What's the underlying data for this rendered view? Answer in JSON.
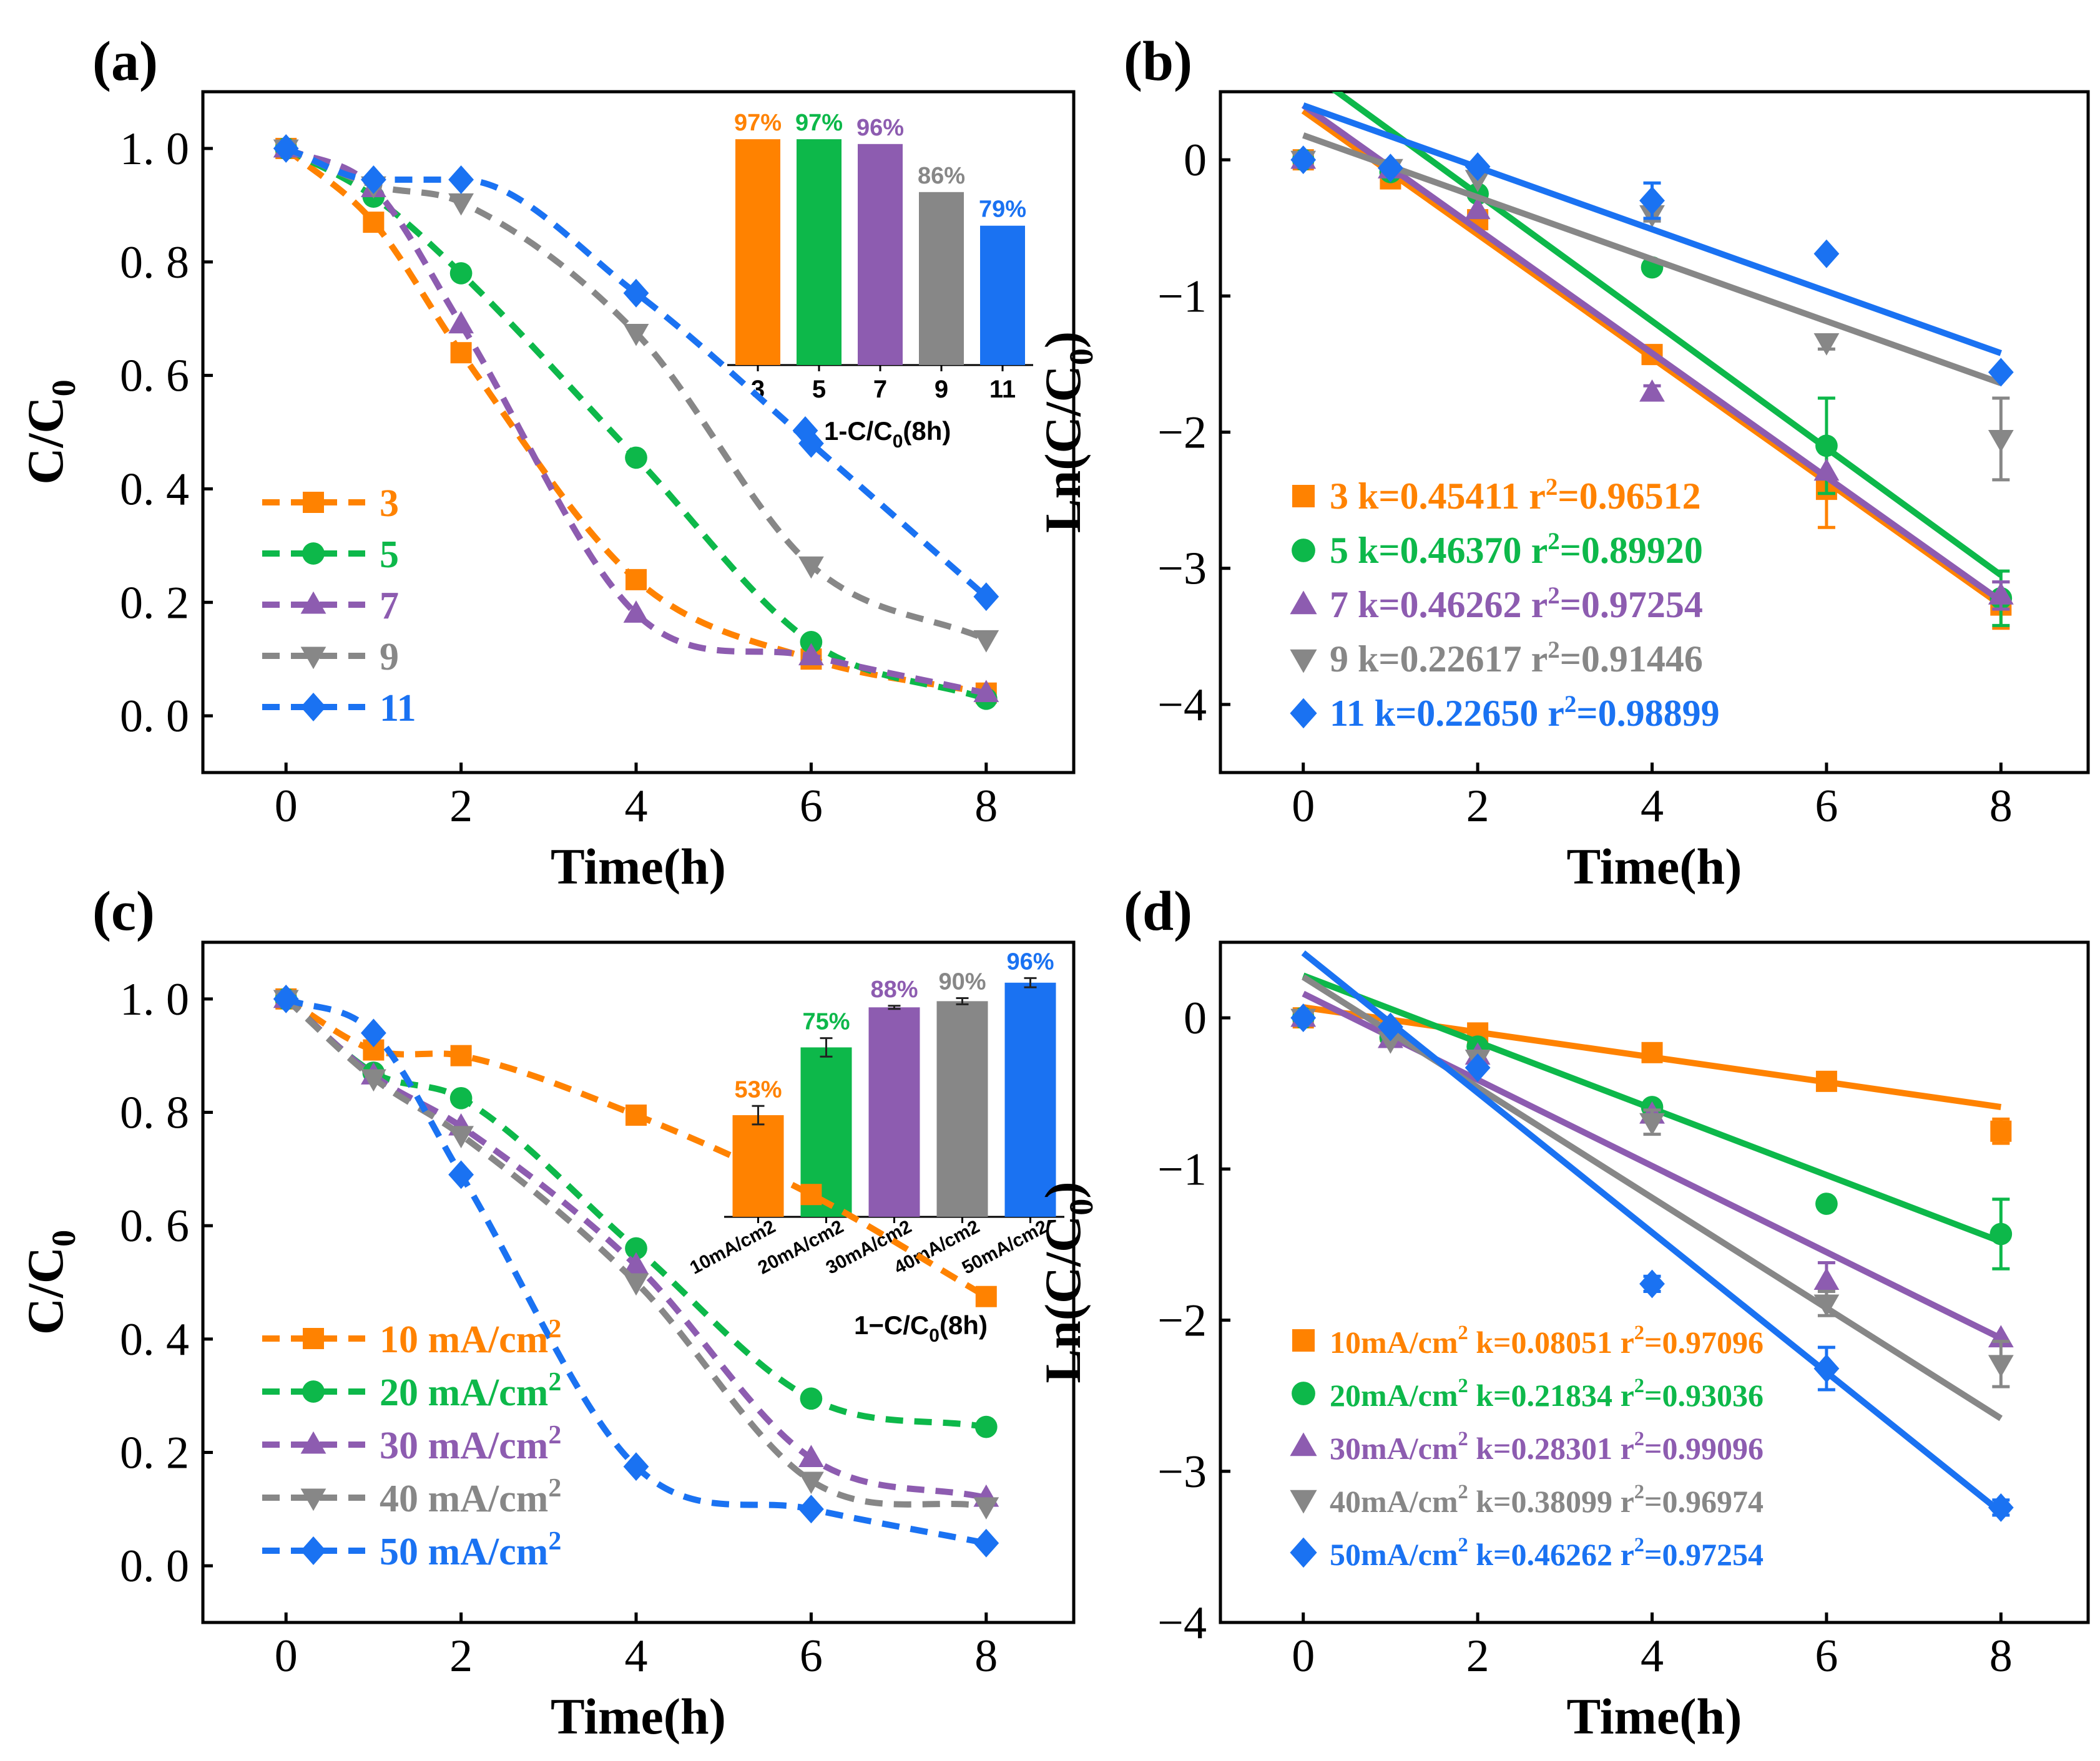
{
  "colors": {
    "orange": "#FF8200",
    "green": "#0DB84A",
    "purple": "#8D5CB0",
    "gray": "#878787",
    "blue": "#1A72F2",
    "axis": "#000000"
  },
  "chart_data": [
    {
      "id": "a",
      "panel_label": "(a)",
      "type": "line",
      "line_style": "dashed-smooth",
      "xlabel": "Time(h)",
      "ylabel": "C/C",
      "ylabel_sub": "0",
      "xlim": [
        -0.95,
        9
      ],
      "ylim": [
        -0.1,
        1.1
      ],
      "xticks": [
        0,
        2,
        4,
        6,
        8
      ],
      "xtick_labels": [
        "0",
        "2",
        "4",
        "6",
        "8"
      ],
      "yticks": [
        0,
        0.2,
        0.4,
        0.6,
        0.8,
        1.0
      ],
      "ytick_labels": [
        "0. 0",
        "0. 2",
        "0. 4",
        "0. 6",
        "0. 8",
        "1. 0"
      ],
      "legend": "middle-left",
      "series": [
        {
          "name": "3",
          "color": "orange",
          "marker": "square",
          "x": [
            0,
            1,
            2,
            4,
            6,
            8
          ],
          "y": [
            1.0,
            0.87,
            0.64,
            0.24,
            0.1,
            0.04
          ]
        },
        {
          "name": "5",
          "color": "green",
          "marker": "circle",
          "x": [
            0,
            1,
            2,
            4,
            6,
            8
          ],
          "y": [
            1.0,
            0.915,
            0.78,
            0.455,
            0.13,
            0.03
          ]
        },
        {
          "name": "7",
          "color": "purple",
          "marker": "triangle-up",
          "x": [
            0,
            1,
            2,
            4,
            6,
            8
          ],
          "y": [
            1.0,
            0.93,
            0.69,
            0.18,
            0.105,
            0.04
          ]
        },
        {
          "name": "9",
          "color": "gray",
          "marker": "triangle-down",
          "x": [
            0,
            1,
            2,
            4,
            6,
            8
          ],
          "y": [
            1.0,
            0.935,
            0.905,
            0.675,
            0.265,
            0.135
          ]
        },
        {
          "name": "11",
          "color": "blue",
          "marker": "diamond",
          "x": [
            0,
            1,
            2,
            4,
            6,
            8
          ],
          "y": [
            1.0,
            0.945,
            0.945,
            0.745,
            0.48,
            0.21
          ]
        }
      ],
      "inset": {
        "type": "bar",
        "categories": [
          "3",
          "5",
          "7",
          "9",
          "11"
        ],
        "values": [
          97,
          97,
          96,
          86,
          79
        ],
        "labels": [
          "97%",
          "97%",
          "96%",
          "86%",
          "79%"
        ],
        "colors": [
          "orange",
          "green",
          "purple",
          "gray",
          "blue"
        ],
        "label_colors": [
          "orange",
          "green",
          "purple",
          "gray",
          "blue"
        ],
        "errors": [
          0,
          0,
          0,
          0,
          0
        ],
        "ylim": [
          50,
          100
        ],
        "rotate_categories": false,
        "legend_text": "1-C/C",
        "legend_sub": "0",
        "legend_tail": "(8h)"
      }
    },
    {
      "id": "b",
      "panel_label": "(b)",
      "type": "scatter",
      "fit": "linear",
      "xlabel": "Time(h)",
      "ylabel": "Ln(C/C",
      "ylabel_sub": "0",
      "ylabel_tail": ")",
      "xlim": [
        -0.95,
        9
      ],
      "ylim": [
        -4.5,
        0.5
      ],
      "xticks": [
        0,
        2,
        4,
        6,
        8
      ],
      "xtick_labels": [
        "0",
        "2",
        "4",
        "6",
        "8"
      ],
      "yticks": [
        -4,
        -3,
        -2,
        -1,
        0
      ],
      "ytick_labels": [
        "−4",
        "−3",
        "−2",
        "−1",
        "0"
      ],
      "legend": "lower-left",
      "series": [
        {
          "name": "3",
          "label_main": "3",
          "k_text": "k=0.45411",
          "r_text": "=0.96512",
          "color": "orange",
          "marker": "square",
          "x": [
            0,
            1,
            2,
            4,
            6,
            8
          ],
          "y": [
            0,
            -0.14,
            -0.44,
            -1.43,
            -2.42,
            -3.27
          ],
          "err": [
            0,
            0,
            0,
            0.05,
            0.28,
            0.17
          ],
          "fit": [
            0.36,
            -3.27
          ]
        },
        {
          "name": "5",
          "label_main": "5",
          "k_text": "k=0.46370",
          "r_text": "=0.89920",
          "color": "green",
          "marker": "circle",
          "x": [
            0,
            1,
            2,
            4,
            6,
            8
          ],
          "y": [
            0,
            -0.09,
            -0.25,
            -0.79,
            -2.1,
            -3.22
          ],
          "err": [
            0,
            0,
            0,
            0,
            0.35,
            0.2
          ],
          "fit": [
            0.68,
            -3.05
          ]
        },
        {
          "name": "7",
          "label_main": "7",
          "k_text": "k=0.46262",
          "r_text": "=0.97254",
          "color": "purple",
          "marker": "triangle-up",
          "x": [
            0,
            1,
            2,
            4,
            6,
            8
          ],
          "y": [
            0,
            -0.07,
            -0.37,
            -1.71,
            -2.29,
            -3.2
          ],
          "err": [
            0,
            0,
            0,
            0.05,
            0,
            0.1
          ],
          "fit": [
            0.4,
            -3.24
          ]
        },
        {
          "name": "9",
          "label_main": "9",
          "k_text": "k=0.22617",
          "r_text": "=0.91446",
          "color": "gray",
          "marker": "triangle-down",
          "x": [
            0,
            1,
            2,
            4,
            6,
            8
          ],
          "y": [
            0,
            -0.06,
            -0.14,
            -0.4,
            -1.34,
            -2.05
          ],
          "err": [
            0,
            0,
            0,
            0.05,
            0.05,
            0.3
          ],
          "fit": [
            0.18,
            -1.64
          ]
        },
        {
          "name": "11",
          "label_main": "11",
          "k_text": "k=0.22650",
          "r_text": "=0.98899",
          "color": "blue",
          "marker": "diamond",
          "x": [
            0,
            1,
            2,
            4,
            6,
            8
          ],
          "y": [
            0,
            -0.06,
            -0.05,
            -0.3,
            -0.69,
            -1.56
          ],
          "err": [
            0,
            0,
            0,
            0.13,
            0,
            0
          ],
          "fit": [
            0.4,
            -1.42
          ]
        }
      ]
    },
    {
      "id": "c",
      "panel_label": "(c)",
      "type": "line",
      "line_style": "dashed-smooth",
      "xlabel": "Time(h)",
      "ylabel": "C/C",
      "ylabel_sub": "0",
      "xlim": [
        -0.95,
        9
      ],
      "ylim": [
        -0.1,
        1.1
      ],
      "xticks": [
        0,
        2,
        4,
        6,
        8
      ],
      "xtick_labels": [
        "0",
        "2",
        "4",
        "6",
        "8"
      ],
      "yticks": [
        0,
        0.2,
        0.4,
        0.6,
        0.8,
        1.0
      ],
      "ytick_labels": [
        "0. 0",
        "0. 2",
        "0. 4",
        "0. 6",
        "0. 8",
        "1. 0"
      ],
      "legend": "lower-left",
      "series": [
        {
          "name": "10 mA/cm2",
          "label_main": "10 mA/cm",
          "label_sup": "2",
          "color": "orange",
          "marker": "square",
          "x": [
            0,
            1,
            2,
            4,
            6,
            8
          ],
          "y": [
            1.0,
            0.91,
            0.9,
            0.795,
            0.655,
            0.475
          ]
        },
        {
          "name": "20 mA/cm2",
          "label_main": "20 mA/cm",
          "label_sup": "2",
          "color": "green",
          "marker": "circle",
          "x": [
            0,
            1,
            2,
            4,
            6,
            8
          ],
          "y": [
            1.0,
            0.87,
            0.825,
            0.56,
            0.295,
            0.245
          ]
        },
        {
          "name": "30 mA/cm2",
          "label_main": "30 mA/cm",
          "label_sup": "2",
          "color": "purple",
          "marker": "triangle-up",
          "x": [
            0,
            1,
            2,
            4,
            6,
            8
          ],
          "y": [
            1.0,
            0.865,
            0.775,
            0.53,
            0.19,
            0.12
          ]
        },
        {
          "name": "40 mA/cm2",
          "label_main": "40 mA/cm",
          "label_sup": "2",
          "color": "gray",
          "marker": "triangle-down",
          "x": [
            0,
            1,
            2,
            4,
            6,
            8
          ],
          "y": [
            1.0,
            0.86,
            0.76,
            0.5,
            0.15,
            0.105
          ]
        },
        {
          "name": "50 mA/cm2",
          "label_main": "50 mA/cm",
          "label_sup": "2",
          "color": "blue",
          "marker": "diamond",
          "x": [
            0,
            1,
            2,
            4,
            6,
            8
          ],
          "y": [
            1.0,
            0.94,
            0.69,
            0.175,
            0.1,
            0.04
          ]
        }
      ],
      "inset": {
        "type": "bar",
        "categories": [
          "10mA/cm2",
          "20mA/cm2",
          "30mA/cm2",
          "40mA/cm2",
          "50mA/cm2"
        ],
        "values": [
          53,
          75,
          88,
          90,
          96
        ],
        "labels": [
          "53%",
          "75%",
          "88%",
          "90%",
          "96%"
        ],
        "colors": [
          "orange",
          "green",
          "purple",
          "gray",
          "blue"
        ],
        "label_colors": [
          "orange",
          "green",
          "purple",
          "gray",
          "blue"
        ],
        "errors": [
          3,
          3,
          0.5,
          1,
          1.5
        ],
        "ylim": [
          20,
          100
        ],
        "rotate_categories": true,
        "legend_text": "1−C/C",
        "legend_sub": "0",
        "legend_tail": "(8h)"
      }
    },
    {
      "id": "d",
      "panel_label": "(d)",
      "type": "scatter",
      "fit": "linear",
      "xlabel": "Time(h)",
      "ylabel": "Ln(C/C",
      "ylabel_sub": "0",
      "ylabel_tail": ")",
      "xlim": [
        -0.95,
        9
      ],
      "ylim": [
        -4,
        0.5
      ],
      "xticks": [
        0,
        2,
        4,
        6,
        8
      ],
      "xtick_labels": [
        "0",
        "2",
        "4",
        "6",
        "8"
      ],
      "yticks": [
        -4,
        -3,
        -2,
        -1,
        0
      ],
      "ytick_labels": [
        "−4",
        "−3",
        "−2",
        "−1",
        "0"
      ],
      "legend": "lower-left",
      "series": [
        {
          "name": "10mA/cm2",
          "label_main": "10mA/cm",
          "label_sup": "2",
          "k_text": " k=0.08051",
          "r_text": "=0.97096",
          "color": "orange",
          "marker": "square",
          "x": [
            0,
            1,
            2,
            4,
            6,
            8
          ],
          "y": [
            0,
            -0.09,
            -0.1,
            -0.23,
            -0.42,
            -0.75
          ],
          "err": [
            0,
            0,
            0,
            0,
            0,
            0.08
          ],
          "fit": [
            0.07,
            -0.59
          ]
        },
        {
          "name": "20mA/cm2",
          "label_main": "20mA/cm",
          "label_sup": "2",
          "k_text": " k=0.21834",
          "r_text": "=0.93036",
          "color": "green",
          "marker": "circle",
          "x": [
            0,
            1,
            2,
            4,
            6,
            8
          ],
          "y": [
            0,
            -0.13,
            -0.19,
            -0.59,
            -1.23,
            -1.43
          ],
          "err": [
            0,
            0,
            0,
            0,
            0,
            0.23
          ],
          "fit": [
            0.28,
            -1.48
          ]
        },
        {
          "name": "30mA/cm2",
          "label_main": "30mA/cm",
          "label_sup": "2",
          "k_text": " k=0.28301",
          "r_text": "=0.99096",
          "color": "purple",
          "marker": "triangle-up",
          "x": [
            0,
            1,
            2,
            4,
            6,
            8
          ],
          "y": [
            0,
            -0.14,
            -0.25,
            -0.64,
            -1.74,
            -2.12
          ],
          "err": [
            0,
            0,
            0,
            0,
            0.12,
            0
          ],
          "fit": [
            0.16,
            -2.12
          ]
        },
        {
          "name": "40mA/cm2",
          "label_main": "40mA/cm",
          "label_sup": "2",
          "k_text": " k=0.38099",
          "r_text": "=0.96974",
          "color": "gray",
          "marker": "triangle-down",
          "x": [
            0,
            1,
            2,
            4,
            6,
            8
          ],
          "y": [
            0,
            -0.15,
            -0.27,
            -0.69,
            -1.89,
            -2.29
          ],
          "err": [
            0,
            0,
            0,
            0.08,
            0.08,
            0.15
          ],
          "fit": [
            0.27,
            -2.65
          ]
        },
        {
          "name": "50mA/cm2",
          "label_main": "50mA/cm",
          "label_sup": "2",
          "k_text": " k=0.46262",
          "r_text": "=0.97254",
          "color": "blue",
          "marker": "diamond",
          "x": [
            0,
            1,
            2,
            4,
            6,
            8
          ],
          "y": [
            0,
            -0.06,
            -0.33,
            -1.76,
            -2.32,
            -3.24
          ],
          "err": [
            0,
            0,
            0,
            0.05,
            0.14,
            0.05
          ],
          "fit": [
            0.43,
            -3.27
          ]
        }
      ]
    }
  ]
}
